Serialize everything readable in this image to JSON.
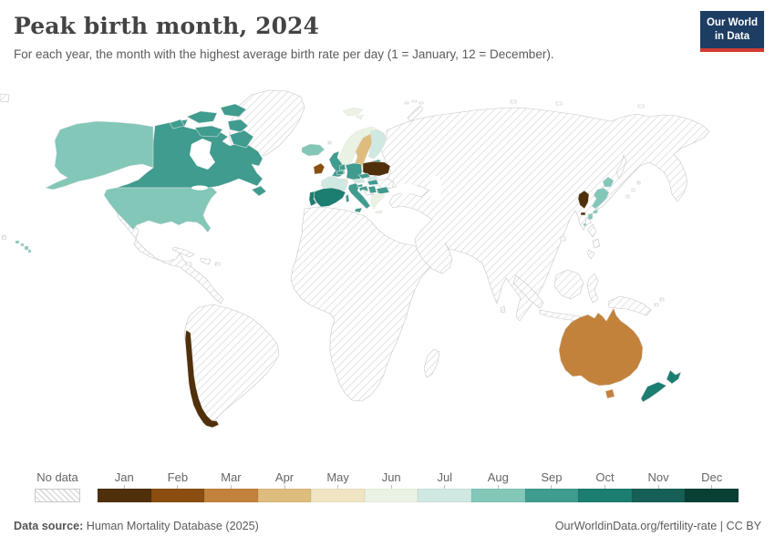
{
  "header": {
    "title": "Peak birth month, 2024",
    "subtitle": "For each year, the month with the highest average birth rate per day (1 = January, 12 = December).",
    "logo": {
      "line1": "Our World",
      "line2": "in Data",
      "bg_color": "#1d3d63",
      "accent_color": "#d23b33"
    }
  },
  "legend": {
    "no_data_label": "No data",
    "months": [
      {
        "label": "Jan",
        "color": "#50300b"
      },
      {
        "label": "Feb",
        "color": "#8a4e10"
      },
      {
        "label": "Mar",
        "color": "#c2823c"
      },
      {
        "label": "Apr",
        "color": "#ddbc7e"
      },
      {
        "label": "May",
        "color": "#f1e4c3"
      },
      {
        "label": "Jun",
        "color": "#eaf3e3"
      },
      {
        "label": "Jul",
        "color": "#cfe8e1"
      },
      {
        "label": "Aug",
        "color": "#83c7b9"
      },
      {
        "label": "Sep",
        "color": "#3f9c8f"
      },
      {
        "label": "Oct",
        "color": "#1c7d71"
      },
      {
        "label": "Nov",
        "color": "#155f56"
      },
      {
        "label": "Dec",
        "color": "#0a3f36"
      }
    ]
  },
  "footer": {
    "source_label": "Data source:",
    "source_value": "Human Mortality Database (2025)",
    "right_text": "OurWorldinData.org/fertility-rate | CC BY"
  },
  "chart_data": {
    "type": "choropleth-map",
    "title": "Peak birth month, 2024",
    "unit": "month of year (1 = January, 12 = December)",
    "no_data_label": "No data",
    "palette": {
      "Jan": "#50300b",
      "Feb": "#8a4e10",
      "Mar": "#c2823c",
      "Apr": "#ddbc7e",
      "May": "#f1e4c3",
      "Jun": "#eaf3e3",
      "Jul": "#cfe8e1",
      "Aug": "#83c7b9",
      "Sep": "#3f9c8f",
      "Oct": "#1c7d71",
      "Nov": "#155f56",
      "Dec": "#0a3f36"
    },
    "countries": [
      {
        "id": "canada",
        "name": "Canada",
        "month": "Sep",
        "month_number": 9
      },
      {
        "id": "united-states",
        "name": "United States",
        "month": "Aug",
        "month_number": 8
      },
      {
        "id": "chile",
        "name": "Chile",
        "month": "Jan",
        "month_number": 1
      },
      {
        "id": "iceland",
        "name": "Iceland",
        "month": "Aug",
        "month_number": 8
      },
      {
        "id": "ireland",
        "name": "Ireland",
        "month": "Feb",
        "month_number": 2
      },
      {
        "id": "united-kingdom",
        "name": "United Kingdom",
        "month": "Sep",
        "month_number": 9
      },
      {
        "id": "portugal",
        "name": "Portugal",
        "month": "Oct",
        "month_number": 10
      },
      {
        "id": "spain",
        "name": "Spain",
        "month": "Oct",
        "month_number": 10
      },
      {
        "id": "france",
        "name": "France",
        "month": "Jul",
        "month_number": 7
      },
      {
        "id": "belgium",
        "name": "Belgium",
        "month": "Sep",
        "month_number": 9
      },
      {
        "id": "netherlands",
        "name": "Netherlands",
        "month": "Sep",
        "month_number": 9
      },
      {
        "id": "germany",
        "name": "Germany",
        "month": "Sep",
        "month_number": 9
      },
      {
        "id": "denmark",
        "name": "Denmark",
        "month": "May",
        "month_number": 5
      },
      {
        "id": "norway",
        "name": "Norway",
        "month": "Jun",
        "month_number": 6
      },
      {
        "id": "sweden",
        "name": "Sweden",
        "month": "Apr",
        "month_number": 4
      },
      {
        "id": "finland",
        "name": "Finland",
        "month": "Jul",
        "month_number": 7
      },
      {
        "id": "estonia",
        "name": "Estonia",
        "month": "Sep",
        "month_number": 9
      },
      {
        "id": "latvia",
        "name": "Latvia",
        "month": "Sep",
        "month_number": 9
      },
      {
        "id": "lithuania",
        "name": "Lithuania",
        "month": "Oct",
        "month_number": 10
      },
      {
        "id": "poland",
        "name": "Poland",
        "month": "Jan",
        "month_number": 1
      },
      {
        "id": "czechia",
        "name": "Czechia",
        "month": "Sep",
        "month_number": 9
      },
      {
        "id": "slovakia",
        "name": "Slovakia",
        "month": "Jul",
        "month_number": 7
      },
      {
        "id": "austria",
        "name": "Austria",
        "month": "Jul",
        "month_number": 7
      },
      {
        "id": "switzerland",
        "name": "Switzerland",
        "month": "May",
        "month_number": 5
      },
      {
        "id": "hungary",
        "name": "Hungary",
        "month": "Sep",
        "month_number": 9
      },
      {
        "id": "slovenia",
        "name": "Slovenia",
        "month": "Sep",
        "month_number": 9
      },
      {
        "id": "croatia",
        "name": "Croatia",
        "month": "Sep",
        "month_number": 9
      },
      {
        "id": "serbia",
        "name": "Serbia",
        "month": "Sep",
        "month_number": 9
      },
      {
        "id": "bulgaria",
        "name": "Bulgaria",
        "month": "Sep",
        "month_number": 9
      },
      {
        "id": "greece",
        "name": "Greece",
        "month": "Jun",
        "month_number": 6
      },
      {
        "id": "italy",
        "name": "Italy",
        "month": "Sep",
        "month_number": 9
      },
      {
        "id": "south-korea",
        "name": "South Korea",
        "month": "Jan",
        "month_number": 1
      },
      {
        "id": "japan",
        "name": "Japan",
        "month": "Aug",
        "month_number": 8
      },
      {
        "id": "australia",
        "name": "Australia",
        "month": "Mar",
        "month_number": 3
      },
      {
        "id": "new-zealand",
        "name": "New Zealand",
        "month": "Oct",
        "month_number": 10
      }
    ]
  }
}
